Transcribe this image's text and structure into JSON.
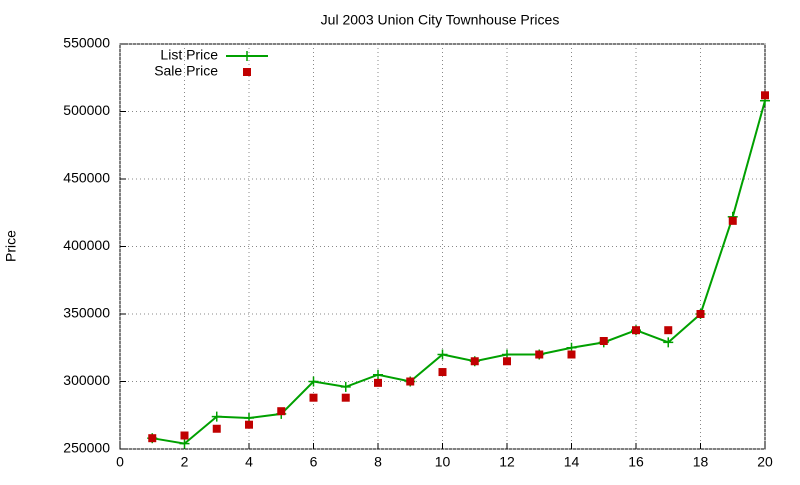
{
  "chart_data": {
    "type": "line",
    "title": "Jul 2003 Union City Townhouse Prices",
    "y_label": "Price",
    "x": [
      1,
      2,
      3,
      4,
      5,
      6,
      7,
      8,
      9,
      10,
      11,
      12,
      13,
      14,
      15,
      16,
      17,
      18,
      19,
      20
    ],
    "series": [
      {
        "name": "List Price",
        "color": "#00a000",
        "style": "line-plus",
        "values": [
          258000,
          254000,
          274000,
          273000,
          276000,
          300000,
          296000,
          305000,
          300000,
          320000,
          315000,
          320000,
          320000,
          325000,
          329000,
          338000,
          329000,
          350000,
          422000,
          508000
        ]
      },
      {
        "name": "Sale Price",
        "color": "#c00000",
        "style": "square",
        "values": [
          258000,
          260000,
          265000,
          268000,
          278000,
          288000,
          288000,
          299000,
          300000,
          307000,
          315000,
          315000,
          320000,
          320000,
          330000,
          338000,
          338000,
          350000,
          419000,
          512000
        ]
      }
    ],
    "xlim": [
      0,
      20
    ],
    "xticks": [
      0,
      2,
      4,
      6,
      8,
      10,
      12,
      14,
      16,
      18,
      20
    ],
    "ylim": [
      250000,
      550000
    ],
    "yticks": [
      250000,
      300000,
      350000,
      400000,
      450000,
      500000,
      550000
    ],
    "grid": true,
    "legend": "top-left"
  }
}
